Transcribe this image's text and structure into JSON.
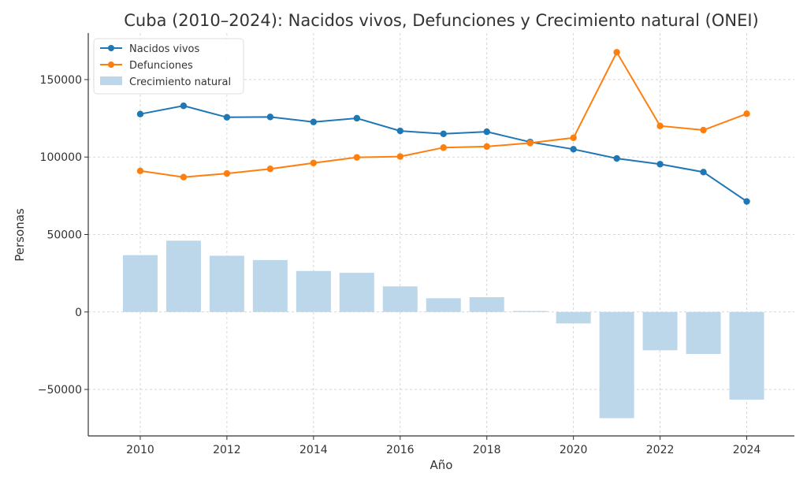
{
  "chart_data": {
    "type": "bar",
    "title": "Cuba (2010–2024): Nacidos vivos, Defunciones y Crecimiento natural (ONEI)",
    "xlabel": "Año",
    "ylabel": "Personas",
    "x": [
      2010,
      2011,
      2012,
      2013,
      2014,
      2015,
      2016,
      2017,
      2018,
      2019,
      2020,
      2021,
      2022,
      2023,
      2024
    ],
    "xticks": [
      "2010",
      "2012",
      "2014",
      "2016",
      "2018",
      "2020",
      "2022",
      "2024"
    ],
    "yticks": [
      "−50000",
      "0",
      "50000",
      "100000",
      "150000"
    ],
    "ylim": [
      -80000,
      180000
    ],
    "xlim": [
      2008.8,
      2025.1
    ],
    "grid": true,
    "legend_position": "top-left",
    "series": [
      {
        "name": "Nacidos vivos",
        "kind": "line",
        "color": "#1f77b4",
        "values": [
          127746,
          133067,
          125674,
          125880,
          122643,
          125064,
          116872,
          114971,
          116333,
          109707,
          105038,
          99096,
          95403,
          90300,
          71350
        ]
      },
      {
        "name": "Defunciones",
        "kind": "line",
        "color": "#ff7f0e",
        "values": [
          91065,
          87044,
          89368,
          92362,
          96169,
          99788,
          100337,
          106097,
          106800,
          109080,
          112441,
          167645,
          120098,
          117400,
          127931
        ]
      },
      {
        "name": "Crecimiento natural",
        "kind": "bar",
        "color": "#bcd6ea",
        "values": [
          36681,
          46023,
          36306,
          33518,
          26474,
          25276,
          16535,
          8874,
          9533,
          627,
          -7403,
          -68549,
          -24695,
          -27100,
          -56581
        ]
      }
    ]
  }
}
